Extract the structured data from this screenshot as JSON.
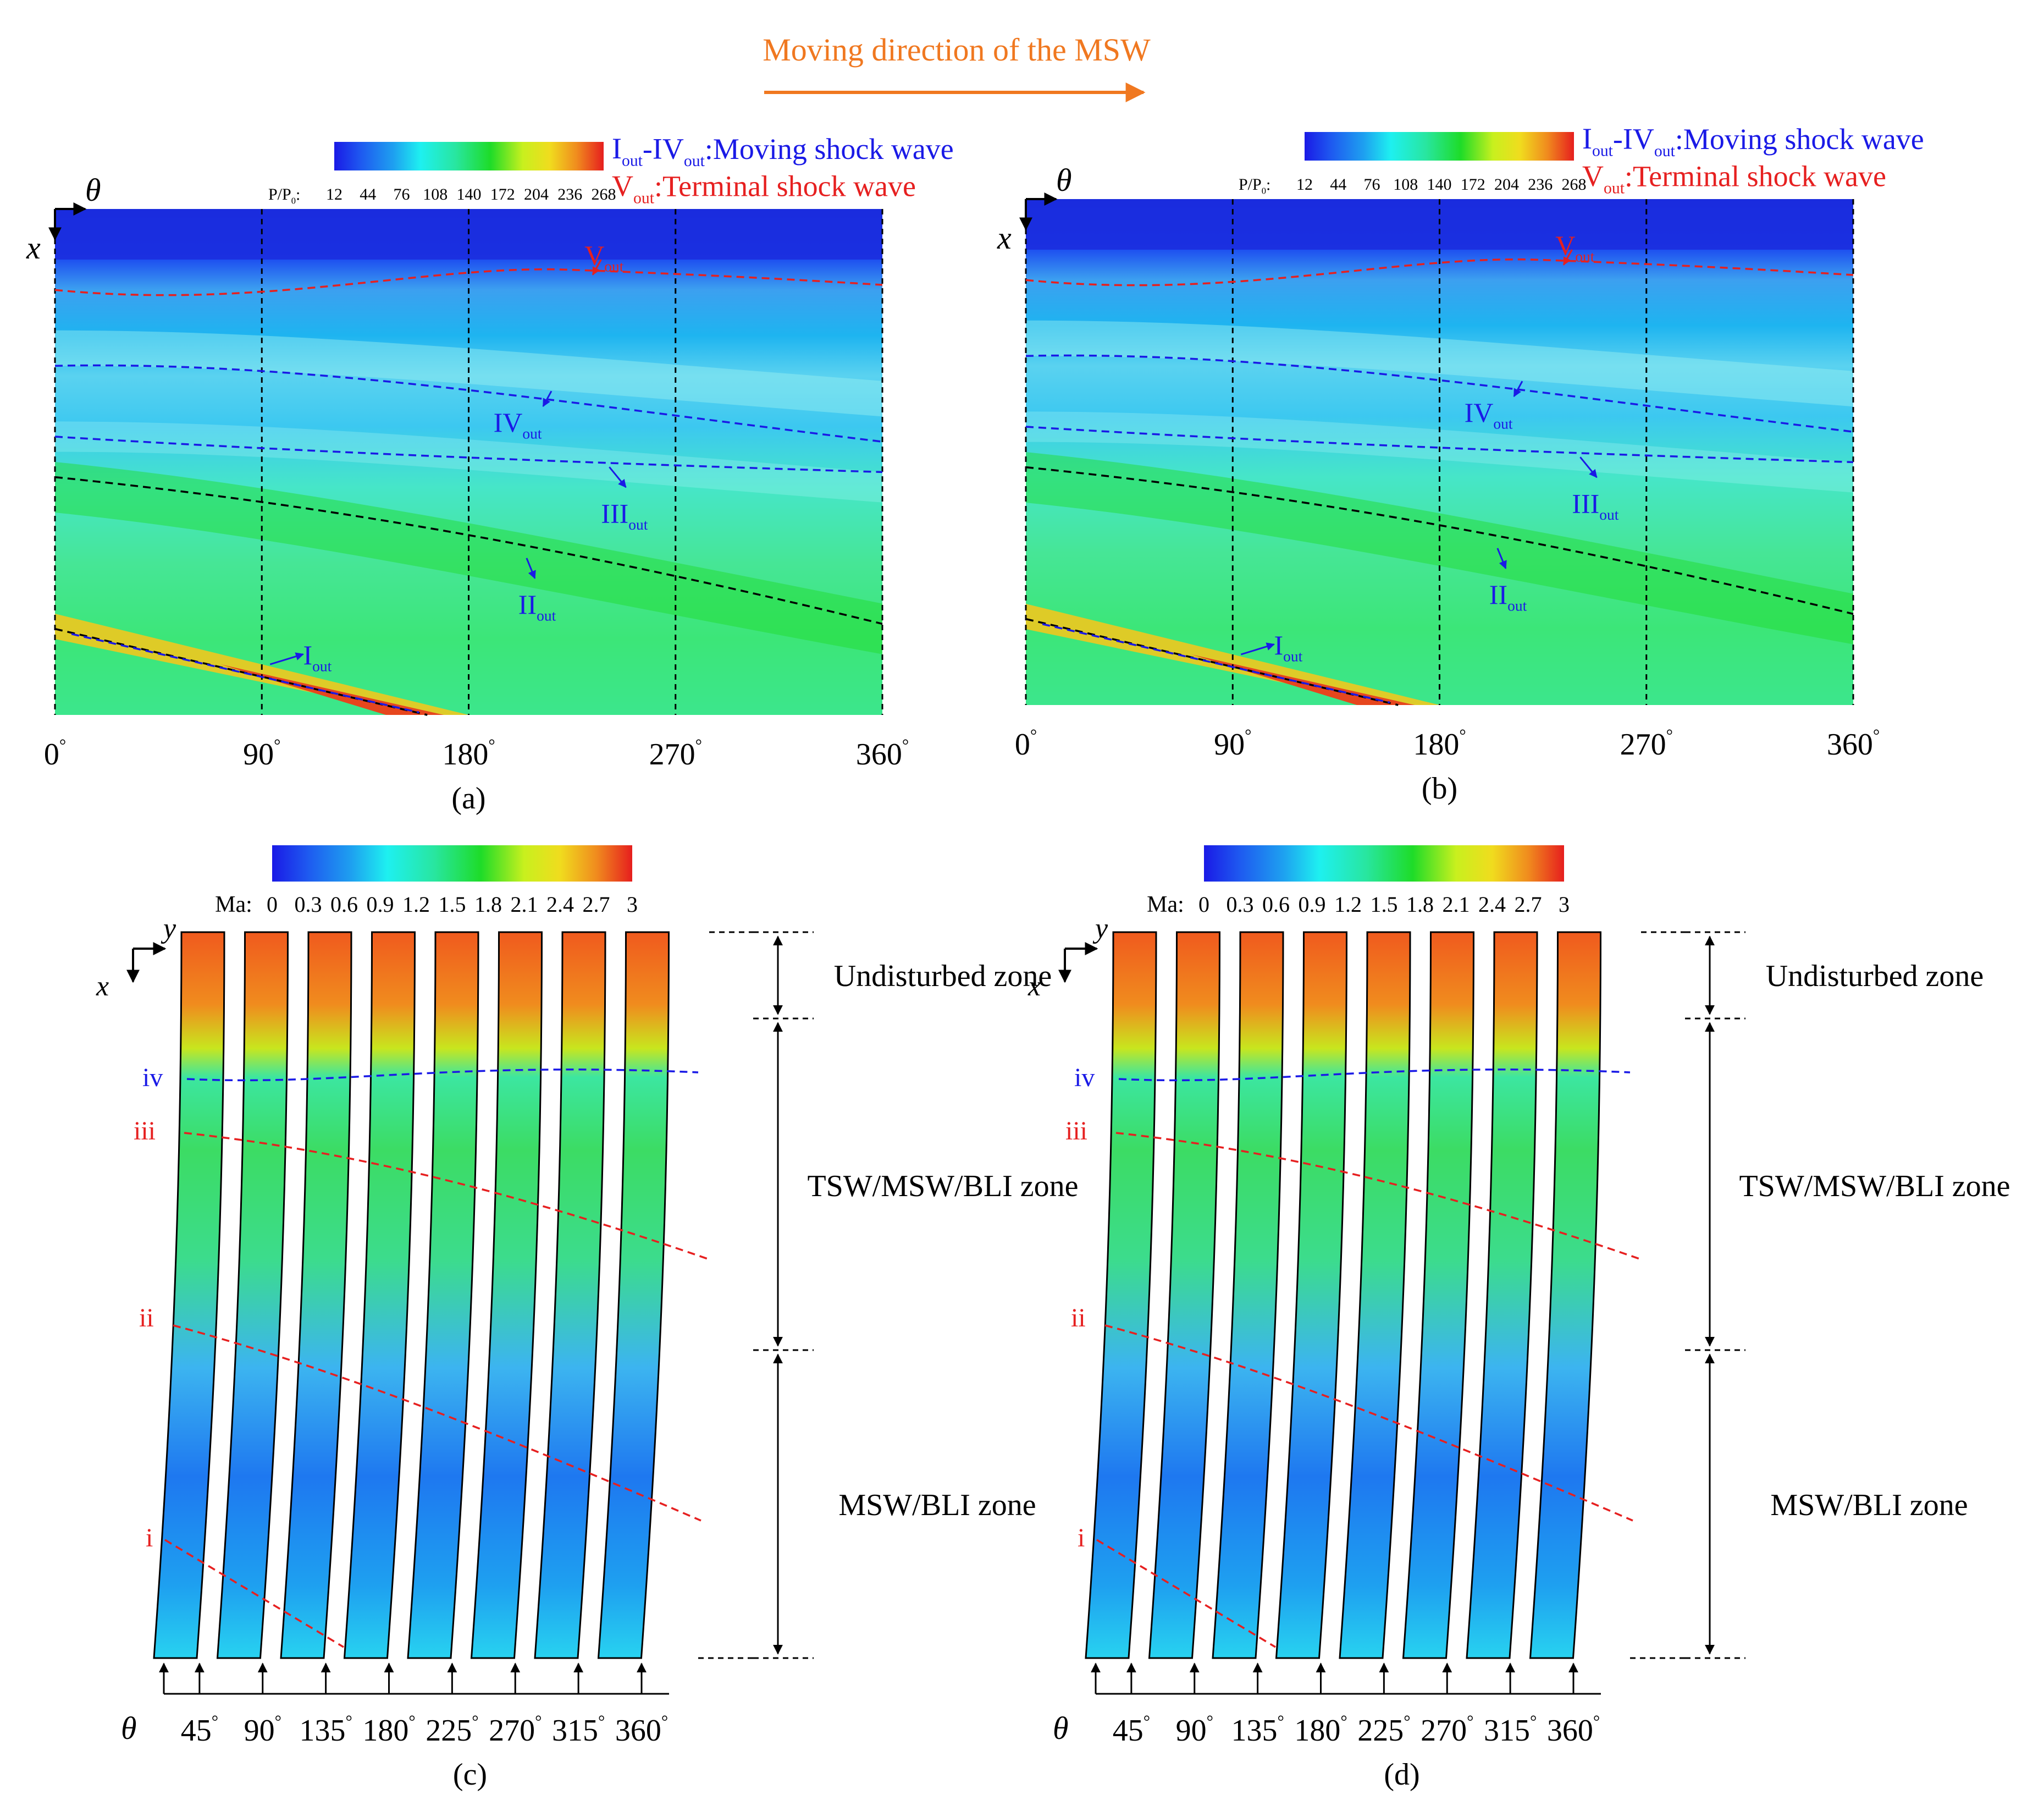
{
  "header": {
    "moving_direction": "Moving direction of the MSW"
  },
  "colors": {
    "accent_orange": "#F07820",
    "moving_shock": "#1A1AE6",
    "terminal_shock": "#E62020"
  },
  "legend_shock": {
    "moving_label_roman": "I",
    "moving_label_sub": "out",
    "moving_label_range": "-IV",
    "moving_label_range_sub": "out",
    "moving_label_text": ":Moving shock wave",
    "terminal_label_roman": "V",
    "terminal_label_sub": "out",
    "terminal_label_text": ":Terminal shock wave"
  },
  "colorbar_pressure": {
    "label": "P/P",
    "label_sub": "0",
    "label_colon": ":",
    "ticks": [
      "12",
      "44",
      "76",
      "108",
      "140",
      "172",
      "204",
      "236",
      "268"
    ]
  },
  "colorbar_mach": {
    "label": "Ma:",
    "ticks": [
      "0",
      "0.3",
      "0.6",
      "0.9",
      "1.2",
      "1.5",
      "1.8",
      "2.1",
      "2.4",
      "2.7",
      "3"
    ]
  },
  "axes": {
    "theta": "θ",
    "x": "x",
    "y": "y",
    "theta_ticks": [
      "0",
      "90",
      "180",
      "270",
      "360"
    ],
    "degree": "°",
    "blade_ticks": [
      "45",
      "90",
      "135",
      "180",
      "225",
      "270",
      "315",
      "360"
    ]
  },
  "shock_labels": {
    "I": "I",
    "II": "II",
    "III": "III",
    "IV": "IV",
    "V": "V",
    "sub": "out"
  },
  "station_labels": {
    "iv": "iv",
    "iii": "iii",
    "ii": "ii",
    "i": "i"
  },
  "zones": {
    "undisturbed": "Undisturbed zone",
    "tsw": "TSW/MSW/BLI zone",
    "msw": "MSW/BLI zone"
  },
  "panels": {
    "a": "(a)",
    "b": "(b)",
    "c": "(c)",
    "d": "(d)"
  }
}
